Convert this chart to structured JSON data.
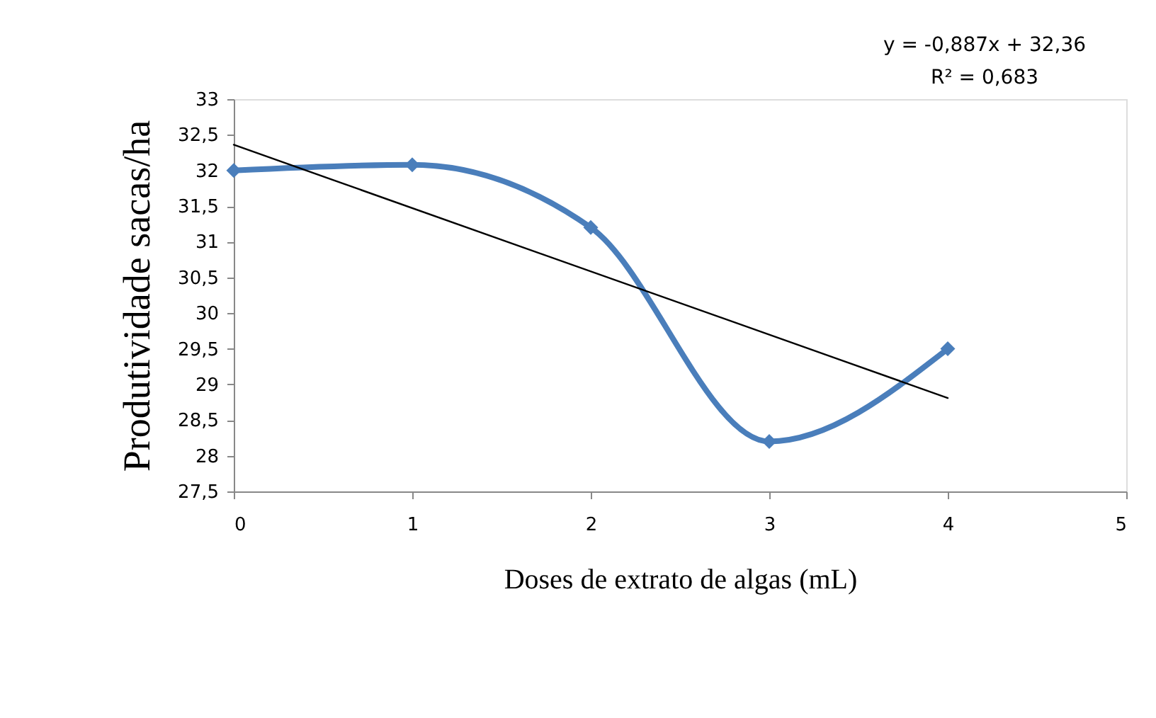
{
  "chart_data": {
    "type": "line",
    "xlabel": "Doses de extrato de algas (mL)",
    "ylabel": "Produtividade sacas/ha",
    "x": [
      0,
      1,
      2,
      3,
      4
    ],
    "series": [
      {
        "type": "line",
        "color": "#4a7ebb",
        "marker": "diamond",
        "values": [
          32,
          32.08,
          31.2,
          28.2,
          29.5
        ]
      },
      {
        "type": "line",
        "color": "#000000",
        "marker": "none",
        "x": [
          0,
          4
        ],
        "values": [
          32.36,
          28.81
        ]
      }
    ],
    "annotations": [
      "y = -0,887x + 32,36",
      "R² = 0,683"
    ],
    "xlim": [
      0,
      5
    ],
    "xticks": [
      0,
      1,
      2,
      3,
      4,
      5
    ],
    "ylim": [
      27.5,
      33
    ],
    "yticks": [
      {
        "value": 27.5,
        "label": "27,5"
      },
      28,
      {
        "value": 28.5,
        "label": "28,5"
      },
      29,
      {
        "value": 29.5,
        "label": "29,5"
      },
      30,
      {
        "value": 30.5,
        "label": "30,5"
      },
      31,
      {
        "value": 31.5,
        "label": "31,5"
      },
      32,
      {
        "value": 32.5,
        "label": "32,5"
      },
      33
    ],
    "grid": false
  }
}
